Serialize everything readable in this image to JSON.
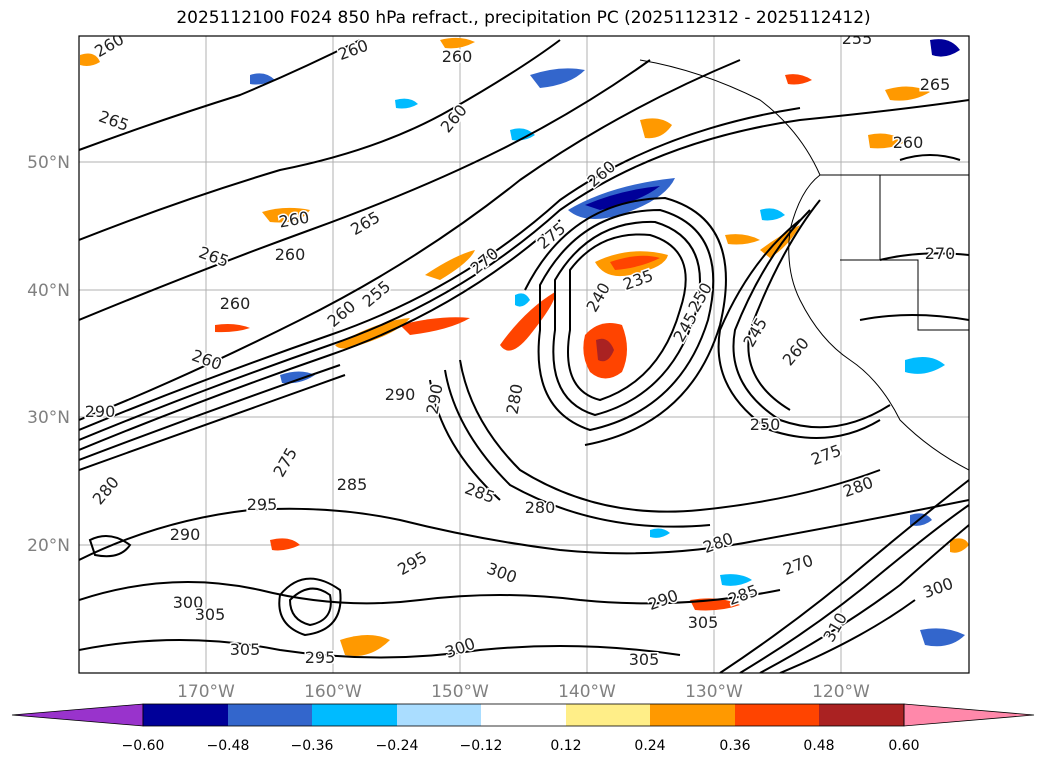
{
  "title": "2025112100 F024 850 hPa refract., precipitation PC (2025112312 - 2025112412)",
  "lat_labels": [
    "50°N",
    "40°N",
    "30°N",
    "20°N"
  ],
  "lon_labels": [
    "170°W",
    "160°W",
    "150°W",
    "140°W",
    "130°W",
    "120°W"
  ],
  "colorbar": {
    "ticks": [
      "−0.60",
      "−0.48",
      "−0.36",
      "−0.24",
      "−0.12",
      "0.12",
      "0.24",
      "0.36",
      "0.48",
      "0.60"
    ],
    "colors": [
      "#9933cc",
      "#000099",
      "#3366cc",
      "#00bbff",
      "#aaddff",
      "#ffffff",
      "#ffee88",
      "#ff9900",
      "#ff4400",
      "#aa2222",
      "#ff88aa"
    ]
  },
  "contours": [
    {
      "label": "260"
    },
    {
      "label": "260"
    },
    {
      "label": "260"
    },
    {
      "label": "255"
    },
    {
      "label": "265"
    },
    {
      "label": "260"
    },
    {
      "label": "260"
    },
    {
      "label": "265"
    },
    {
      "label": "265"
    },
    {
      "label": "260"
    },
    {
      "label": "260"
    },
    {
      "label": "260"
    },
    {
      "label": "255"
    },
    {
      "label": "260"
    },
    {
      "label": "270"
    },
    {
      "label": "275"
    },
    {
      "label": "260"
    },
    {
      "label": "240"
    },
    {
      "label": "235"
    },
    {
      "label": "245"
    },
    {
      "label": "250"
    },
    {
      "label": "245"
    },
    {
      "label": "260"
    },
    {
      "label": "250"
    },
    {
      "label": "275"
    },
    {
      "label": "280"
    },
    {
      "label": "280"
    },
    {
      "label": "285"
    },
    {
      "label": "295"
    },
    {
      "label": "290"
    },
    {
      "label": "290"
    },
    {
      "label": "290"
    },
    {
      "label": "280"
    },
    {
      "label": "275"
    },
    {
      "label": "285"
    },
    {
      "label": "280"
    },
    {
      "label": "290"
    },
    {
      "label": "295"
    },
    {
      "label": "300"
    },
    {
      "label": "300"
    },
    {
      "label": "305"
    },
    {
      "label": "305"
    },
    {
      "label": "295"
    },
    {
      "label": "300"
    },
    {
      "label": "305"
    },
    {
      "label": "280"
    },
    {
      "label": "285"
    },
    {
      "label": "305"
    },
    {
      "label": "300"
    },
    {
      "label": "290"
    },
    {
      "label": "270"
    },
    {
      "label": "310"
    },
    {
      "label": "270"
    },
    {
      "label": "265"
    },
    {
      "label": "260"
    }
  ]
}
